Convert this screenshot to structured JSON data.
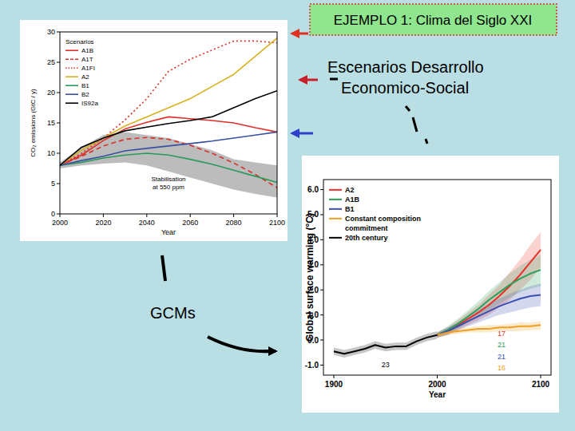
{
  "slide": {
    "title": "EJEMPLO 1: Clima del Siglo XXI",
    "scenario_label": [
      "Escenarios Desarrollo",
      "Economico-Social"
    ],
    "model_label": "GCMs"
  },
  "chart_data": [
    {
      "type": "line",
      "x_label": "Year",
      "y_label": "CO₂ emissions (GtC / y)",
      "legend_title": "Scenarios",
      "legend": "upper left",
      "grid": false,
      "x": [
        2000,
        2010,
        2020,
        2030,
        2040,
        2050,
        2060,
        2070,
        2080,
        2090,
        2100
      ],
      "xlim": [
        2000,
        2100
      ],
      "xticks": [
        2000,
        2020,
        2040,
        2060,
        2080,
        2100
      ],
      "ylim": [
        0,
        30
      ],
      "yticks": [
        0,
        5,
        10,
        15,
        20,
        25,
        30
      ],
      "series": [
        {
          "name": "A1B",
          "color": "#e0302a",
          "line_style": "solid",
          "values": [
            8,
            9.7,
            12.1,
            14,
            15.1,
            16,
            15.7,
            15.4,
            15,
            14.2,
            13.5
          ]
        },
        {
          "name": "A1T",
          "color": "#d9302a",
          "line_style": "dashed",
          "values": [
            8,
            9.5,
            11.2,
            12.3,
            12.6,
            12.3,
            11.3,
            10,
            8.4,
            6.5,
            4.3
          ]
        },
        {
          "name": "A1FI",
          "color": "#d9302a",
          "line_style": "dotted",
          "values": [
            8,
            10,
            12.5,
            15.5,
            19,
            23.5,
            25.5,
            27,
            28.5,
            28.5,
            28.2
          ]
        },
        {
          "name": "A2",
          "color": "#d9b020",
          "line_style": "solid",
          "values": [
            8,
            10.5,
            12.5,
            14.5,
            16,
            17.5,
            19,
            21,
            23,
            26,
            29
          ]
        },
        {
          "name": "B1",
          "color": "#2a9a5a",
          "line_style": "solid",
          "values": [
            8,
            8.5,
            9.2,
            9.7,
            10,
            9.7,
            9,
            8.2,
            7.2,
            6.2,
            5.2
          ]
        },
        {
          "name": "B2",
          "color": "#3a50a0",
          "line_style": "solid",
          "values": [
            8,
            8.8,
            9.5,
            10.4,
            10.8,
            11.2,
            11.6,
            12,
            12.5,
            13,
            13.5
          ]
        },
        {
          "name": "IS92a",
          "color": "#000000",
          "line_style": "solid",
          "values": [
            8,
            11,
            12.5,
            13.7,
            14.3,
            14.9,
            15.4,
            16,
            17.5,
            19,
            20.3
          ]
        },
        {
          "name": "Stabilisation at 550 ppm",
          "type": "band",
          "color": "#b0b0b0",
          "upper": [
            8.5,
            11,
            13,
            13.5,
            13,
            12.5,
            11.5,
            10.5,
            9,
            8.5,
            8
          ],
          "lower": [
            7.5,
            8,
            8.3,
            8.5,
            8,
            7,
            6,
            5,
            4,
            3.3,
            2.7
          ]
        }
      ]
    },
    {
      "type": "line",
      "x_label": "Year",
      "y_label": "Global surface warming (°C)",
      "legend": "upper left",
      "grid": false,
      "x": [
        1900,
        1910,
        1920,
        1930,
        1940,
        1950,
        1960,
        1970,
        1980,
        1990,
        2000,
        2010,
        2020,
        2030,
        2040,
        2050,
        2060,
        2070,
        2080,
        2090,
        2100
      ],
      "xlim": [
        1890,
        2110
      ],
      "xticks": [
        1900,
        2000,
        2100
      ],
      "ylim": [
        -1.4,
        6.4
      ],
      "yticks": [
        {
          "value": -1,
          "label": "-1.0"
        },
        {
          "value": 0,
          "label": "0.0"
        },
        {
          "value": 1,
          "label": "1.0"
        },
        {
          "value": 2,
          "label": "2.0"
        },
        {
          "value": 3,
          "label": "3.0"
        },
        {
          "value": 4,
          "label": "4.0"
        },
        {
          "value": 5,
          "label": "5.0"
        },
        {
          "value": 6,
          "label": "6.0"
        }
      ],
      "series": [
        {
          "name": "A2",
          "color": "#e8312a",
          "models": 17,
          "values": [
            null,
            null,
            null,
            null,
            null,
            null,
            null,
            null,
            null,
            null,
            0.2,
            0.35,
            0.6,
            0.85,
            1.1,
            1.4,
            1.75,
            2.15,
            2.6,
            3.1,
            3.6
          ],
          "lower": [
            null,
            null,
            null,
            null,
            null,
            null,
            null,
            null,
            null,
            null,
            0.1,
            0.2,
            0.4,
            0.6,
            0.8,
            1.0,
            1.3,
            1.6,
            2.0,
            2.4,
            2.9
          ],
          "upper": [
            null,
            null,
            null,
            null,
            null,
            null,
            null,
            null,
            null,
            null,
            0.3,
            0.5,
            0.8,
            1.1,
            1.4,
            1.8,
            2.2,
            2.7,
            3.2,
            3.8,
            4.3
          ]
        },
        {
          "name": "A1B",
          "color": "#2aa05a",
          "models": 21,
          "values": [
            null,
            null,
            null,
            null,
            null,
            null,
            null,
            null,
            null,
            null,
            0.2,
            0.4,
            0.65,
            0.95,
            1.25,
            1.6,
            1.9,
            2.2,
            2.45,
            2.65,
            2.8
          ],
          "lower": [
            null,
            null,
            null,
            null,
            null,
            null,
            null,
            null,
            null,
            null,
            0.1,
            0.25,
            0.45,
            0.7,
            0.95,
            1.2,
            1.45,
            1.7,
            1.9,
            2.05,
            2.15
          ],
          "upper": [
            null,
            null,
            null,
            null,
            null,
            null,
            null,
            null,
            null,
            null,
            0.3,
            0.55,
            0.85,
            1.2,
            1.55,
            1.95,
            2.3,
            2.65,
            2.95,
            3.2,
            3.4
          ]
        },
        {
          "name": "B1",
          "color": "#3a4fb0",
          "models": 21,
          "values": [
            null,
            null,
            null,
            null,
            null,
            null,
            null,
            null,
            null,
            null,
            0.2,
            0.35,
            0.55,
            0.75,
            0.95,
            1.15,
            1.35,
            1.5,
            1.65,
            1.75,
            1.8
          ],
          "lower": [
            null,
            null,
            null,
            null,
            null,
            null,
            null,
            null,
            null,
            null,
            0.1,
            0.2,
            0.4,
            0.55,
            0.7,
            0.85,
            1.0,
            1.1,
            1.2,
            1.3,
            1.35
          ],
          "upper": [
            null,
            null,
            null,
            null,
            null,
            null,
            null,
            null,
            null,
            null,
            0.3,
            0.5,
            0.7,
            0.95,
            1.2,
            1.45,
            1.65,
            1.85,
            2.0,
            2.15,
            2.25
          ]
        },
        {
          "name": "Constant composition commitment",
          "color": "#f0a020",
          "models": 16,
          "values": [
            null,
            null,
            null,
            null,
            null,
            null,
            null,
            null,
            null,
            null,
            0.2,
            0.3,
            0.35,
            0.4,
            0.45,
            0.45,
            0.5,
            0.5,
            0.55,
            0.55,
            0.6
          ],
          "lower": [
            null,
            null,
            null,
            null,
            null,
            null,
            null,
            null,
            null,
            null,
            0.1,
            0.2,
            0.25,
            0.3,
            0.3,
            0.3,
            0.35,
            0.35,
            0.35,
            0.4,
            0.4
          ],
          "upper": [
            null,
            null,
            null,
            null,
            null,
            null,
            null,
            null,
            null,
            null,
            0.3,
            0.4,
            0.45,
            0.5,
            0.55,
            0.6,
            0.6,
            0.65,
            0.7,
            0.7,
            0.75
          ]
        },
        {
          "name": "20th century",
          "color": "#000000",
          "models": 23,
          "values": [
            -0.45,
            -0.55,
            -0.45,
            -0.35,
            -0.2,
            -0.3,
            -0.25,
            -0.25,
            -0.05,
            0.1,
            0.2,
            null,
            null,
            null,
            null,
            null,
            null,
            null,
            null,
            null,
            null
          ],
          "lower": [
            -0.6,
            -0.7,
            -0.6,
            -0.5,
            -0.35,
            -0.45,
            -0.4,
            -0.4,
            -0.2,
            -0.05,
            0.05,
            null,
            null,
            null,
            null,
            null,
            null,
            null,
            null,
            null,
            null
          ],
          "upper": [
            -0.3,
            -0.4,
            -0.3,
            -0.2,
            -0.05,
            -0.15,
            -0.1,
            -0.1,
            0.1,
            0.25,
            0.35,
            null,
            null,
            null,
            null,
            null,
            null,
            null,
            null,
            null,
            null
          ]
        }
      ]
    }
  ]
}
